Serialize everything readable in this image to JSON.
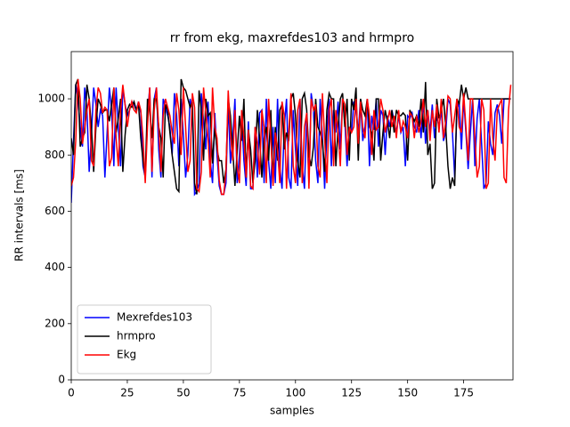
{
  "chart_data": {
    "type": "line",
    "title": "rr from ekg, maxrefdes103 and hrmpro",
    "x_label": "samples",
    "y_label": "RR intervals [ms]",
    "x": [
      0,
      1,
      2,
      3,
      4,
      5,
      6,
      7,
      8,
      9,
      10,
      11,
      12,
      13,
      14,
      15,
      16,
      17,
      18,
      19,
      20,
      21,
      22,
      23,
      24,
      25,
      26,
      27,
      28,
      29,
      30,
      31,
      32,
      33,
      34,
      35,
      36,
      37,
      38,
      39,
      40,
      41,
      42,
      43,
      44,
      45,
      46,
      47,
      48,
      49,
      50,
      51,
      52,
      53,
      54,
      55,
      56,
      57,
      58,
      59,
      60,
      61,
      62,
      63,
      64,
      65,
      66,
      67,
      68,
      69,
      70,
      71,
      72,
      73,
      74,
      75,
      76,
      77,
      78,
      79,
      80,
      81,
      82,
      83,
      84,
      85,
      86,
      87,
      88,
      89,
      90,
      91,
      92,
      93,
      94,
      95,
      96,
      97,
      98,
      99,
      100,
      101,
      102,
      103,
      104,
      105,
      106,
      107,
      108,
      109,
      110,
      111,
      112,
      113,
      114,
      115,
      116,
      117,
      118,
      119,
      120,
      121,
      122,
      123,
      124,
      125,
      126,
      127,
      128,
      129,
      130,
      131,
      132,
      133,
      134,
      135,
      136,
      137,
      138,
      139,
      140,
      141,
      142,
      143,
      144,
      145,
      146,
      147,
      148,
      149,
      150,
      151,
      152,
      153,
      154,
      155,
      156,
      157,
      158,
      159,
      160,
      161,
      162,
      163,
      164,
      165,
      166,
      167,
      168,
      169,
      170,
      171,
      172,
      173,
      174,
      175,
      176,
      177,
      178,
      179,
      180,
      181,
      182,
      183,
      184,
      185,
      186,
      187,
      188,
      189,
      190,
      191,
      192,
      193,
      194,
      195,
      196
    ],
    "series": [
      {
        "name": "Mexrefdes103",
        "color": "#0000ff",
        "values": [
          630,
          850,
          1050,
          1000,
          900,
          830,
          1040,
          960,
          740,
          870,
          1040,
          980,
          900,
          960,
          940,
          720,
          880,
          1040,
          960,
          760,
          1040,
          900,
          760,
          1040,
          980,
          940,
          960,
          990,
          980,
          960,
          990,
          950,
          760,
          720,
          940,
          1040,
          720,
          1000,
          1040,
          820,
          720,
          1000,
          970,
          940,
          900,
          800,
          1020,
          940,
          760,
          1000,
          870,
          720,
          800,
          1000,
          960,
          660,
          670,
          700,
          1020,
          920,
          820,
          990,
          780,
          700,
          950,
          800,
          690,
          660,
          660,
          700,
          990,
          770,
          860,
          1000,
          700,
          800,
          940,
          780,
          690,
          920,
          680,
          680,
          900,
          720,
          950,
          960,
          700,
          1000,
          780,
          680,
          900,
          700,
          1000,
          760,
          680,
          900,
          1000,
          720,
          680,
          960,
          820,
          690,
          1000,
          760,
          680,
          950,
          700,
          1020,
          960,
          780,
          700,
          1000,
          870,
          680,
          880,
          1000,
          760,
          960,
          880,
          990,
          820,
          1000,
          920,
          760,
          900,
          880,
          990,
          960,
          880,
          1000,
          850,
          900,
          1000,
          760,
          940,
          890,
          1000,
          830,
          960,
          940,
          800,
          940,
          900,
          960,
          920,
          880,
          940,
          880,
          900,
          760,
          940,
          930,
          950,
          900,
          880,
          960,
          860,
          1000,
          840,
          960,
          880,
          980,
          860,
          940,
          900,
          960,
          850,
          880,
          1000,
          980,
          880,
          720,
          960,
          990,
          820,
          1000,
          880,
          750,
          880,
          1000,
          760,
          930,
          1000,
          840,
          680,
          700,
          920,
          840,
          800,
          950,
          980,
          940,
          840,
          1000,
          1000,
          1000,
          1000
        ]
      },
      {
        "name": "hrmpro",
        "color": "#000000",
        "values": [
          860,
          800,
          1050,
          1070,
          830,
          860,
          880,
          1050,
          1000,
          900,
          740,
          900,
          1000,
          980,
          950,
          960,
          960,
          920,
          980,
          1040,
          880,
          930,
          1000,
          740,
          870,
          960,
          980,
          970,
          990,
          960,
          980,
          860,
          780,
          720,
          1000,
          960,
          860,
          1000,
          1000,
          900,
          860,
          720,
          980,
          960,
          880,
          800,
          740,
          680,
          670,
          1070,
          1040,
          1030,
          1000,
          970,
          990,
          700,
          660,
          1030,
          960,
          780,
          1000,
          940,
          950,
          770,
          900,
          820,
          780,
          780,
          700,
          750,
          1000,
          940,
          820,
          690,
          810,
          940,
          850,
          1000,
          720,
          890,
          820,
          700,
          780,
          960,
          860,
          720,
          860,
          900,
          780,
          960,
          700,
          900,
          780,
          960,
          980,
          820,
          880,
          850,
          1000,
          1020,
          940,
          780,
          720,
          1000,
          1020,
          960,
          800,
          760,
          830,
          1000,
          900,
          880,
          850,
          740,
          960,
          1020,
          1000,
          1000,
          760,
          900,
          1000,
          1020,
          900,
          1000,
          780,
          1000,
          960,
          1040,
          780,
          1000,
          960,
          940,
          1000,
          900,
          880,
          780,
          1000,
          1000,
          780,
          880,
          960,
          920,
          860,
          960,
          880,
          960,
          940,
          940,
          950,
          940,
          780,
          960,
          940,
          920,
          940,
          900,
          1000,
          880,
          1060,
          800,
          840,
          680,
          700,
          1000,
          930,
          960,
          1000,
          900,
          760,
          680,
          720,
          690,
          1000,
          980,
          1050,
          1000,
          1040,
          1000,
          1000,
          1000,
          1000,
          1000,
          1000,
          1000,
          1000,
          1000,
          1000,
          1000,
          1000,
          1000,
          1000,
          1000,
          1000,
          1000,
          1000,
          1000,
          1000
        ]
      },
      {
        "name": "Ekg",
        "color": "#ff0000",
        "values": [
          690,
          720,
          850,
          1070,
          1000,
          840,
          900,
          960,
          1000,
          780,
          760,
          960,
          1040,
          1020,
          950,
          970,
          960,
          760,
          790,
          1040,
          860,
          760,
          960,
          1050,
          980,
          900,
          960,
          990,
          960,
          950,
          990,
          960,
          860,
          700,
          900,
          1040,
          740,
          960,
          1040,
          900,
          740,
          940,
          1000,
          970,
          940,
          880,
          840,
          1020,
          960,
          800,
          1040,
          900,
          740,
          780,
          1020,
          970,
          680,
          670,
          740,
          1040,
          950,
          860,
          720,
          1040,
          900,
          860,
          710,
          660,
          660,
          740,
          1030,
          880,
          780,
          960,
          760,
          700,
          960,
          860,
          720,
          890,
          690,
          680,
          900,
          840,
          730,
          960,
          900,
          700,
          1000,
          860,
          690,
          880,
          820,
          700,
          990,
          940,
          680,
          880,
          1020,
          760,
          700,
          960,
          1000,
          700,
          900,
          950,
          680,
          1000,
          960,
          980,
          760,
          720,
          1020,
          860,
          700,
          960,
          1000,
          760,
          960,
          880,
          760,
          1000,
          980,
          800,
          900,
          880,
          900,
          1000,
          840,
          990,
          900,
          860,
          1000,
          940,
          800,
          960,
          890,
          900,
          1000,
          960,
          880,
          920,
          960,
          900,
          940,
          860,
          960,
          880,
          920,
          900,
          860,
          950,
          940,
          860,
          940,
          880,
          920,
          1000,
          900,
          960,
          850,
          960,
          900,
          980,
          880,
          1000,
          860,
          920,
          1010,
          1000,
          880,
          940,
          1000,
          900,
          880,
          1020,
          900,
          780,
          1000,
          1000,
          860,
          720,
          760,
          1000,
          960,
          680,
          700,
          1000,
          860,
          780,
          960,
          980,
          1000,
          720,
          700,
          960,
          1050
        ]
      }
    ],
    "xlim": [
      0,
      197
    ],
    "xticks": [
      0,
      25,
      50,
      75,
      100,
      125,
      150,
      175
    ],
    "ylim": [
      0,
      1168
    ],
    "yticks": [
      0,
      200,
      400,
      600,
      800,
      1000
    ],
    "grid": false,
    "legend": "lower left"
  }
}
